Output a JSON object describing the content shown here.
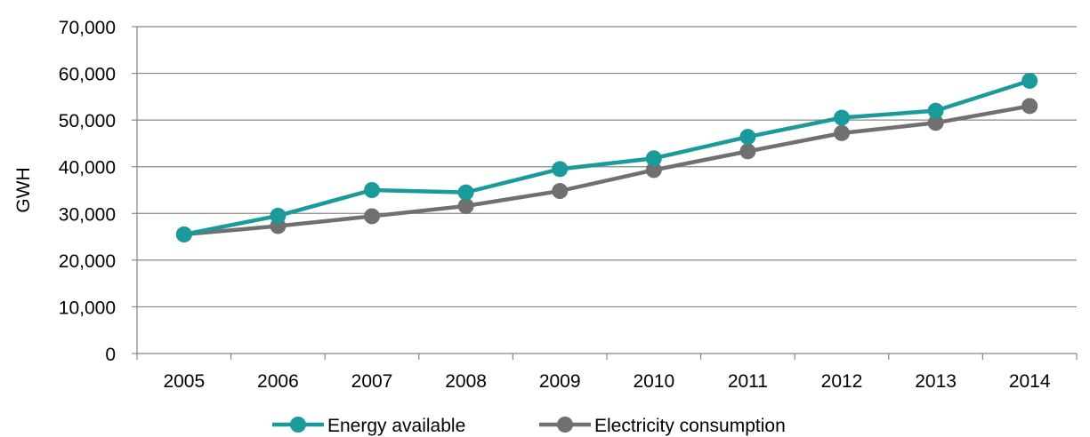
{
  "chart_data": {
    "type": "line",
    "title": "",
    "xlabel": "",
    "ylabel": "GWH",
    "categories": [
      "2005",
      "2006",
      "2007",
      "2008",
      "2009",
      "2010",
      "2011",
      "2012",
      "2013",
      "2014"
    ],
    "ylim": [
      0,
      70000
    ],
    "yticks": [
      0,
      10000,
      20000,
      30000,
      40000,
      50000,
      60000,
      70000
    ],
    "ytick_labels": [
      "0",
      "10,000",
      "20,000",
      "30,000",
      "40,000",
      "50,000",
      "60,000",
      "70,000"
    ],
    "grid": true,
    "legend_position": "bottom",
    "series": [
      {
        "name": "Energy available",
        "color": "#1a9a9a",
        "values": [
          25500,
          29500,
          35000,
          34500,
          39500,
          41800,
          46400,
          50500,
          52000,
          58400
        ]
      },
      {
        "name": "Electricity consumption",
        "color": "#707070",
        "values": [
          25500,
          27300,
          29400,
          31600,
          34800,
          39300,
          43300,
          47200,
          49400,
          53000
        ]
      }
    ]
  }
}
